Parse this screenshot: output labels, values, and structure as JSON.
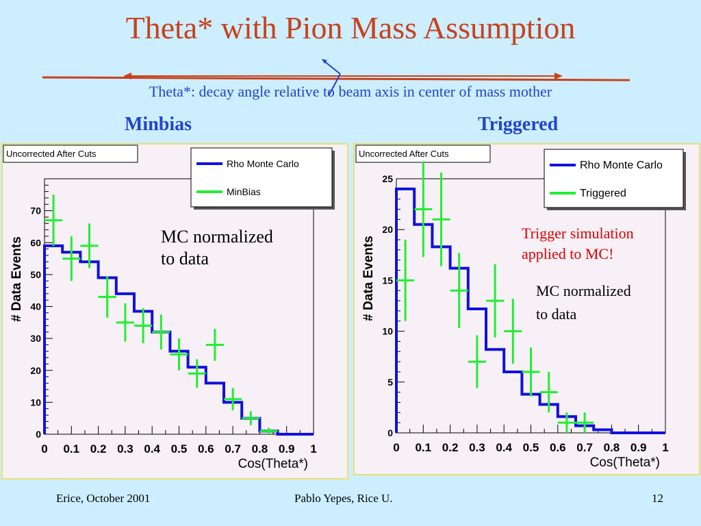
{
  "slide": {
    "title": "Theta* with Pion Mass Assumption",
    "subtitle": "Theta*: decay angle relative to beam axis in center of mass mother",
    "left_label": "Minbias",
    "right_label": "Triggered",
    "footer_left": "Erice, October 2001",
    "footer_center": "Pablo Yepes, Rice U.",
    "page_number": "12"
  },
  "colors": {
    "title": "#c8411b",
    "heading": "#2244cc",
    "mc": "#1010dd",
    "data": "#22ee33",
    "annotation_red": "#dd0000"
  },
  "chart_data": [
    {
      "type": "line",
      "title": "Uncorrected After Cuts",
      "xlabel": "Cos(Theta*)",
      "ylabel": "# Data Events",
      "xlim": [
        0,
        1
      ],
      "ylim": [
        0,
        80
      ],
      "xticks": [
        "0",
        "0.1",
        "0.2",
        "0.3",
        "0.4",
        "0.5",
        "0.6",
        "0.7",
        "0.8",
        "0.9",
        "1"
      ],
      "yticks": [
        "0",
        "10",
        "20",
        "30",
        "40",
        "50",
        "60",
        "70"
      ],
      "bin_width": 0.066667,
      "grid": false,
      "legend": "top-right",
      "series": [
        {
          "name": "Rho Monte Carlo",
          "style": "histogram",
          "x": [
            0,
            0.0667,
            0.1333,
            0.2,
            0.2667,
            0.3333,
            0.4,
            0.4667,
            0.5333,
            0.6,
            0.6667,
            0.7333,
            0.8,
            0.8667,
            0.9333
          ],
          "values": [
            59,
            57,
            54,
            49,
            44,
            38.5,
            32,
            26,
            21,
            16,
            10,
            5,
            1,
            0,
            0
          ]
        },
        {
          "name": "MinBias",
          "style": "errorbar",
          "x": [
            0.0333,
            0.1,
            0.1667,
            0.2333,
            0.3,
            0.3667,
            0.4333,
            0.5,
            0.5667,
            0.6333,
            0.7,
            0.7667,
            0.8333
          ],
          "values": [
            67,
            55,
            59,
            43,
            35,
            34,
            32,
            25,
            19,
            28,
            11,
            5,
            1
          ],
          "errors": [
            8,
            7,
            7,
            6.5,
            6,
            5.5,
            5.5,
            5,
            4.5,
            5,
            3.5,
            2.2,
            1
          ]
        }
      ],
      "annotations": [
        "MC normalized",
        "to data"
      ]
    },
    {
      "type": "line",
      "title": "Uncorrected After Cuts",
      "xlabel": "Cos(Theta*)",
      "ylabel": "# Data Events",
      "xlim": [
        0,
        1
      ],
      "ylim": [
        0,
        25
      ],
      "xticks": [
        "0",
        "0.1",
        "0.2",
        "0.3",
        "0.4",
        "0.5",
        "0.6",
        "0.7",
        "0.8",
        "0.9",
        "1"
      ],
      "yticks": [
        "0",
        "5",
        "10",
        "15",
        "20",
        "25"
      ],
      "bin_width": 0.066667,
      "grid": false,
      "legend": "top-right",
      "series": [
        {
          "name": "Rho Monte Carlo",
          "style": "histogram",
          "x": [
            0,
            0.0667,
            0.1333,
            0.2,
            0.2667,
            0.3333,
            0.4,
            0.4667,
            0.5333,
            0.6,
            0.6667,
            0.7333,
            0.8,
            0.8667,
            0.9333
          ],
          "values": [
            24,
            20.5,
            18.3,
            16.2,
            12.2,
            8.2,
            6,
            3.8,
            2.8,
            1.6,
            0.7,
            0.3,
            0,
            0,
            0
          ]
        },
        {
          "name": "Triggered",
          "style": "errorbar",
          "x": [
            0.0333,
            0.1,
            0.1667,
            0.2333,
            0.3,
            0.3667,
            0.4333,
            0.5,
            0.5667,
            0.6333,
            0.7
          ],
          "values": [
            15,
            22,
            21,
            14,
            7,
            13,
            10,
            6,
            4,
            1,
            1
          ],
          "errors": [
            4,
            4.7,
            4.6,
            3.7,
            2.6,
            3.6,
            3.2,
            2.4,
            2,
            1,
            1
          ]
        }
      ],
      "annotations": [
        "Trigger simulation",
        "applied to MC!",
        "MC normalized",
        "to data"
      ]
    }
  ]
}
